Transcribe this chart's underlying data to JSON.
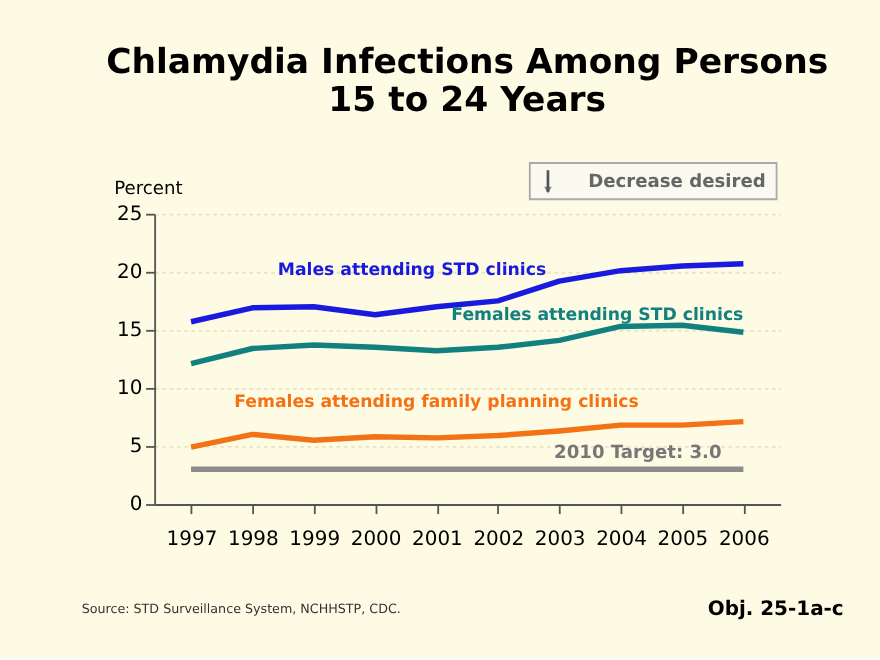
{
  "chart_data": {
    "type": "line",
    "title": "Chlamydia Infections Among Persons\n15 to 24 Years",
    "ylabel": "Percent",
    "categories": [
      "1997",
      "1998",
      "1999",
      "2000",
      "2001",
      "2002",
      "2003",
      "2004",
      "2005",
      "2006"
    ],
    "series": [
      {
        "name": "Males attending STD clinics",
        "color": "#1a1adf",
        "values": [
          15.7,
          16.9,
          17.0,
          16.3,
          17.0,
          17.5,
          19.2,
          20.1,
          20.5,
          20.7
        ]
      },
      {
        "name": "Females attending STD clinics",
        "color": "#138080",
        "values": [
          12.1,
          13.4,
          13.7,
          13.5,
          13.2,
          13.5,
          14.1,
          15.3,
          15.4,
          14.8
        ]
      },
      {
        "name": "Females attending family planning clinics",
        "color": "#f47216",
        "values": [
          4.9,
          6.0,
          5.5,
          5.8,
          5.7,
          5.9,
          6.3,
          6.8,
          6.8,
          7.1
        ]
      }
    ],
    "ref_lines": [
      {
        "axis": "y",
        "value": 3.0,
        "label": "2010 Target: 3.0",
        "color": "#8c8c8c"
      }
    ],
    "ylim": [
      0,
      25
    ],
    "yticks": [
      0,
      5,
      10,
      15,
      20,
      25
    ],
    "grid": "y",
    "legend": false,
    "marker": "none",
    "line_style": "solid",
    "annotations": [
      "Decrease desired",
      "Source: STD Surveillance System, NCHHSTP, CDC.",
      "Obj. 25-1a-c"
    ]
  }
}
